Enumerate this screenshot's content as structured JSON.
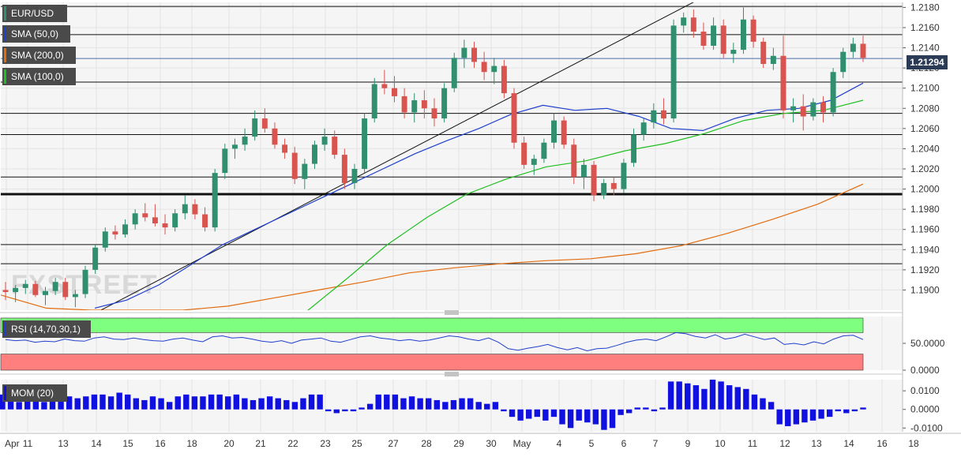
{
  "chart_data": {
    "type": "candlestick",
    "symbol": "EUR/USD",
    "current_price": "1.21294",
    "ylim": [
      1.188,
      1.2185
    ],
    "y_ticks": [
      "1.2180",
      "1.2160",
      "1.2140",
      "1.2120",
      "1.2100",
      "1.2080",
      "1.2060",
      "1.2040",
      "1.2020",
      "1.2000",
      "1.1980",
      "1.1960",
      "1.1940",
      "1.1920",
      "1.1900"
    ],
    "x_ticks": [
      "Apr",
      "11",
      "13",
      "14",
      "15",
      "16",
      "18",
      "20",
      "21",
      "22",
      "23",
      "25",
      "27",
      "28",
      "29",
      "30",
      "May",
      "4",
      "5",
      "6",
      "7",
      "9",
      "10",
      "11",
      "12",
      "13",
      "14",
      "16",
      "18"
    ],
    "horizontal_levels": [
      1.2181,
      1.2153,
      1.2106,
      1.2075,
      1.2054,
      1.2012,
      1.1995,
      1.1945,
      1.1926
    ],
    "key_level": 1.1995,
    "current_level": 1.21294,
    "candle_color_up": "#2f8f6e",
    "candle_color_down": "#d9534f",
    "trendline": {
      "from": [
        1.188
      ],
      "to": [
        1.2192
      ]
    },
    "overlays": [
      {
        "name": "SMA (50,0)",
        "color": "#1f3fcc",
        "values": [
          1.1882,
          1.189,
          1.1905,
          1.1925,
          1.1945,
          1.196,
          1.1975,
          1.199,
          1.2005,
          1.202,
          1.2035,
          1.2048,
          1.206,
          1.2074,
          1.2083,
          1.2078,
          1.208,
          1.2072,
          1.206,
          1.2058,
          1.207,
          1.2078,
          1.208,
          1.2088,
          1.2105
        ]
      },
      {
        "name": "SMA (200,0)",
        "color": "#e36b0e",
        "values": [
          1.1895,
          1.1882,
          1.188,
          1.188,
          1.188,
          1.1884,
          1.1892,
          1.19,
          1.1908,
          1.1917,
          1.1922,
          1.1926,
          1.1929,
          1.1931,
          1.1936,
          1.1944,
          1.1956,
          1.197,
          1.1985,
          1.2005
        ]
      },
      {
        "name": "SMA (100,0)",
        "color": "#1fbf1f",
        "values": [
          1.186,
          1.188,
          1.1912,
          1.1945,
          1.1972,
          1.1995,
          1.201,
          1.2022,
          1.2028,
          1.2038,
          1.2045,
          1.2055,
          1.2068,
          1.2075,
          1.2078,
          1.2088
        ]
      }
    ],
    "candles": [
      [
        1.19,
        1.1908,
        1.189,
        1.1898
      ],
      [
        1.1898,
        1.1905,
        1.1888,
        1.1902
      ],
      [
        1.1902,
        1.191,
        1.1896,
        1.1906
      ],
      [
        1.1906,
        1.1909,
        1.1893,
        1.1895
      ],
      [
        1.1895,
        1.1903,
        1.1885,
        1.1899
      ],
      [
        1.1899,
        1.1912,
        1.1895,
        1.1908
      ],
      [
        1.1908,
        1.1912,
        1.189,
        1.1893
      ],
      [
        1.1893,
        1.19,
        1.1883,
        1.1896
      ],
      [
        1.1896,
        1.1924,
        1.1892,
        1.192
      ],
      [
        1.192,
        1.1945,
        1.1916,
        1.1942
      ],
      [
        1.1942,
        1.1962,
        1.1938,
        1.1958
      ],
      [
        1.1958,
        1.1964,
        1.195,
        1.1955
      ],
      [
        1.1955,
        1.197,
        1.1952,
        1.1965
      ],
      [
        1.1965,
        1.198,
        1.196,
        1.1976
      ],
      [
        1.1976,
        1.1986,
        1.1968,
        1.1972
      ],
      [
        1.1972,
        1.1985,
        1.1963,
        1.1966
      ],
      [
        1.1966,
        1.1975,
        1.1955,
        1.1962
      ],
      [
        1.1962,
        1.198,
        1.1958,
        1.1976
      ],
      [
        1.1976,
        1.1994,
        1.197,
        1.1985
      ],
      [
        1.1985,
        1.199,
        1.197,
        1.1975
      ],
      [
        1.1975,
        1.1982,
        1.1958,
        1.1962
      ],
      [
        1.1962,
        1.202,
        1.1958,
        1.2016
      ],
      [
        1.2016,
        1.2045,
        1.201,
        1.204
      ],
      [
        1.204,
        1.205,
        1.203,
        1.2044
      ],
      [
        1.2044,
        1.206,
        1.2038,
        1.2052
      ],
      [
        1.2052,
        1.2078,
        1.2048,
        1.207
      ],
      [
        1.207,
        1.208,
        1.2056,
        1.206
      ],
      [
        1.206,
        1.2066,
        1.204,
        1.2044
      ],
      [
        1.2044,
        1.205,
        1.203,
        1.2036
      ],
      [
        1.2036,
        1.2042,
        1.2005,
        1.201
      ],
      [
        1.201,
        1.203,
        1.2,
        1.2025
      ],
      [
        1.2025,
        1.2048,
        1.202,
        1.2044
      ],
      [
        1.2044,
        1.206,
        1.2038,
        1.2052
      ],
      [
        1.2052,
        1.2058,
        1.203,
        1.2034
      ],
      [
        1.2034,
        1.204,
        1.2,
        1.2006
      ],
      [
        1.2006,
        1.2025,
        1.2,
        1.202
      ],
      [
        1.202,
        1.2075,
        1.2016,
        1.207
      ],
      [
        1.207,
        1.211,
        1.2066,
        1.2104
      ],
      [
        1.2104,
        1.2118,
        1.2094,
        1.21
      ],
      [
        1.21,
        1.2112,
        1.2086,
        1.2092
      ],
      [
        1.2092,
        1.21,
        1.207,
        1.2076
      ],
      [
        1.2076,
        1.2095,
        1.2066,
        1.2088
      ],
      [
        1.2088,
        1.2098,
        1.207,
        1.208
      ],
      [
        1.208,
        1.209,
        1.2062,
        1.207
      ],
      [
        1.207,
        1.2105,
        1.2066,
        1.21
      ],
      [
        1.21,
        1.2135,
        1.2096,
        1.213
      ],
      [
        1.213,
        1.2148,
        1.212,
        1.214
      ],
      [
        1.214,
        1.2146,
        1.212,
        1.2126
      ],
      [
        1.2126,
        1.2136,
        1.2108,
        1.2116
      ],
      [
        1.2116,
        1.213,
        1.2104,
        1.2122
      ],
      [
        1.2122,
        1.2128,
        1.209,
        1.2095
      ],
      [
        1.2095,
        1.21,
        1.204,
        1.2046
      ],
      [
        1.2046,
        1.2052,
        1.202,
        1.2024
      ],
      [
        1.2024,
        1.2034,
        1.2014,
        1.203
      ],
      [
        1.203,
        1.205,
        1.2026,
        1.2046
      ],
      [
        1.2046,
        1.2075,
        1.204,
        1.2068
      ],
      [
        1.2068,
        1.2072,
        1.204,
        1.2044
      ],
      [
        1.2044,
        1.205,
        1.2005,
        1.2012
      ],
      [
        1.2012,
        1.203,
        1.2,
        1.2024
      ],
      [
        1.2024,
        1.2028,
        1.1988,
        1.1994
      ],
      [
        1.1994,
        1.201,
        1.199,
        1.2006
      ],
      [
        1.2006,
        1.2012,
        1.1994,
        1.2
      ],
      [
        1.2,
        1.203,
        1.1996,
        1.2026
      ],
      [
        1.2026,
        1.206,
        1.2022,
        1.2054
      ],
      [
        1.2054,
        1.207,
        1.2048,
        1.2066
      ],
      [
        1.2066,
        1.2085,
        1.206,
        1.2078
      ],
      [
        1.2078,
        1.209,
        1.2064,
        1.207
      ],
      [
        1.207,
        1.2168,
        1.2066,
        1.2162
      ],
      [
        1.2162,
        1.2175,
        1.2155,
        1.217
      ],
      [
        1.217,
        1.2178,
        1.215,
        1.2156
      ],
      [
        1.2156,
        1.2165,
        1.2138,
        1.2142
      ],
      [
        1.2142,
        1.217,
        1.2138,
        1.2162
      ],
      [
        1.2162,
        1.2168,
        1.213,
        1.2134
      ],
      [
        1.2134,
        1.2145,
        1.2125,
        1.2138
      ],
      [
        1.2138,
        1.218,
        1.2134,
        1.2168
      ],
      [
        1.2168,
        1.2172,
        1.214,
        1.2146
      ],
      [
        1.2146,
        1.215,
        1.212,
        1.2124
      ],
      [
        1.2124,
        1.214,
        1.2118,
        1.2132
      ],
      [
        1.2132,
        1.2152,
        1.207,
        1.2078
      ],
      [
        1.2078,
        1.209,
        1.2066,
        1.2082
      ],
      [
        1.2082,
        1.2094,
        1.2058,
        1.2072
      ],
      [
        1.2072,
        1.209,
        1.2068,
        1.2086
      ],
      [
        1.2086,
        1.2092,
        1.2066,
        1.2076
      ],
      [
        1.2076,
        1.212,
        1.2072,
        1.2116
      ],
      [
        1.2116,
        1.214,
        1.211,
        1.2136
      ],
      [
        1.2136,
        1.215,
        1.213,
        1.2144
      ],
      [
        1.2144,
        1.2152,
        1.2126,
        1.213
      ]
    ],
    "indicators": [
      {
        "name": "RSI (14,70,30,1)",
        "y_ticks": [
          "50.0000",
          "0.0000"
        ],
        "ylim": [
          0,
          100
        ],
        "upper_band": 70,
        "lower_band": 30,
        "band_upper_color": "#7fff7f",
        "band_lower_color": "#ff7f7f",
        "line_color": "#1f3fcc",
        "values": [
          57,
          55,
          56,
          52,
          54,
          53,
          58,
          55,
          54,
          60,
          62,
          58,
          57,
          60,
          57,
          55,
          54,
          58,
          60,
          56,
          53,
          62,
          64,
          60,
          61,
          58,
          54,
          52,
          55,
          50,
          56,
          58,
          60,
          54,
          52,
          57,
          62,
          64,
          60,
          58,
          55,
          57,
          54,
          56,
          60,
          64,
          62,
          58,
          55,
          60,
          52,
          40,
          37,
          41,
          44,
          48,
          42,
          38,
          42,
          36,
          40,
          41,
          46,
          52,
          56,
          58,
          55,
          62,
          70,
          68,
          63,
          60,
          66,
          58,
          61,
          67,
          62,
          57,
          60,
          48,
          50,
          47,
          53,
          49,
          58,
          64,
          65,
          57
        ]
      },
      {
        "name": "MOM (20)",
        "y_ticks": [
          "0.0100",
          "0.0000",
          "-0.0100"
        ],
        "ylim": [
          -0.012,
          0.016
        ],
        "line_color": "#1010e0",
        "values": [
          0.008,
          0.006,
          0.004,
          0.005,
          0.006,
          0.004,
          0.006,
          0.005,
          0.007,
          0.006,
          0.007,
          0.008,
          0.008,
          0.007,
          0.009,
          0.008,
          0.006,
          0.005,
          0.007,
          0.006,
          0.004,
          0.007,
          0.008,
          0.007,
          0.007,
          0.008,
          0.008,
          0.007,
          0.008,
          0.006,
          0.005,
          0.006,
          0.007,
          0.006,
          0.005,
          0.004,
          0.006,
          0.008,
          0.008,
          -0.001,
          -0.002,
          -0.001,
          -0.001,
          0.001,
          0.003,
          0.008,
          0.008,
          0.008,
          0.006,
          0.007,
          0.006,
          0.006,
          0.005,
          0.004,
          0.005,
          0.006,
          0.006,
          0.004,
          0.003,
          0.004,
          -0.001,
          -0.004,
          -0.006,
          -0.005,
          -0.004,
          -0.006,
          -0.004,
          -0.008,
          -0.01,
          -0.006,
          -0.007,
          -0.008,
          -0.011,
          -0.01,
          -0.003,
          -0.002,
          0.001,
          0.001,
          -0.001,
          0.001,
          0.015,
          0.015,
          0.014,
          0.013,
          0.011,
          0.016,
          0.015,
          0.013,
          0.012,
          0.011,
          0.008,
          0.006,
          0.004,
          -0.008,
          -0.009,
          -0.008,
          -0.007,
          -0.006,
          -0.005,
          -0.004,
          -0.001,
          -0.002,
          -0.001,
          0.001
        ]
      }
    ]
  },
  "labels": {
    "symbol": "EUR/USD",
    "sma50": "SMA (50,0)",
    "sma200": "SMA (200,0)",
    "sma100": "SMA (100,0)",
    "rsi": "RSI (14,70,30,1)",
    "mom": "MOM (20)",
    "price": "1.21294"
  },
  "watermark": "FXSTREET"
}
